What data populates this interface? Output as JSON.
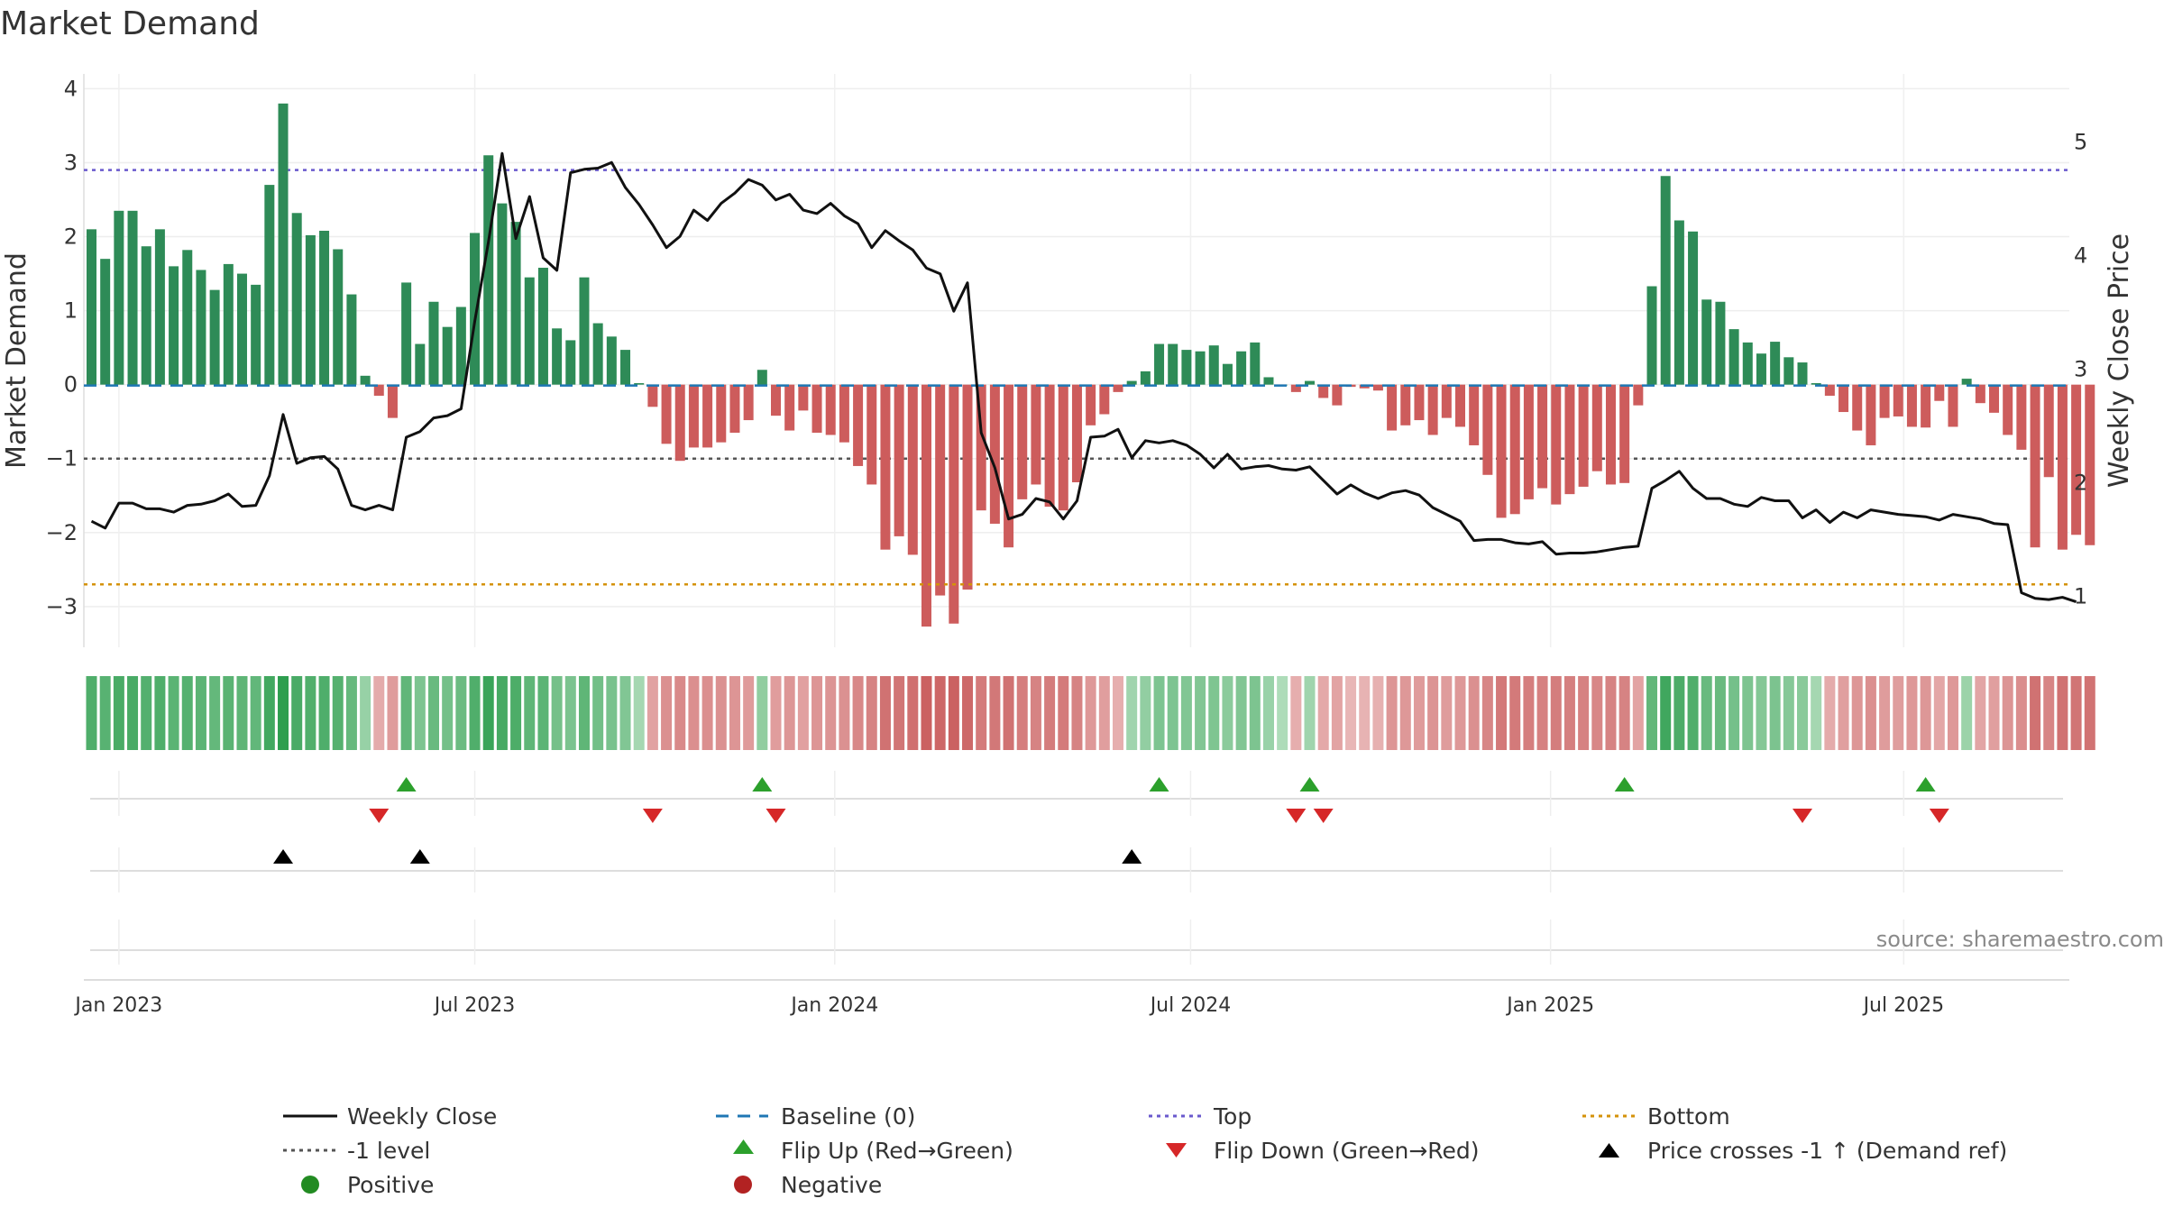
{
  "chart_data": {
    "type": "bar",
    "title": "Market Demand",
    "ylabel": "Market Demand",
    "y2label": "Weekly Close Price",
    "ylim": [
      -3.55,
      4.2
    ],
    "y2lim": [
      0.55,
      5.6
    ],
    "yticks": [
      -3,
      -2,
      -1,
      0,
      1,
      2,
      3,
      4
    ],
    "y2ticks": [
      1,
      2,
      3,
      4,
      5
    ],
    "x_start": "2022-12-19",
    "x_end": "2025-09-22",
    "xticks": [
      {
        "label": "Jan 2023",
        "week": 2
      },
      {
        "label": "Jul 2023",
        "week": 28
      },
      {
        "label": "Jan 2024",
        "week": 54.3
      },
      {
        "label": "Jul 2024",
        "week": 80.3
      },
      {
        "label": "Jan 2025",
        "week": 106.6
      },
      {
        "label": "Jul 2025",
        "week": 132.4
      }
    ],
    "reference_lines": {
      "top": 2.9,
      "minus_one": -1,
      "bottom": -2.7,
      "baseline": 0
    },
    "demand": [
      2.1,
      1.7,
      2.35,
      2.35,
      1.87,
      2.1,
      1.6,
      1.82,
      1.55,
      1.28,
      1.63,
      1.5,
      1.35,
      2.7,
      3.8,
      2.32,
      2.02,
      2.08,
      1.83,
      1.22,
      0.12,
      -0.15,
      -0.45,
      1.38,
      0.55,
      1.12,
      0.78,
      1.05,
      2.05,
      3.1,
      2.45,
      2.2,
      1.45,
      1.58,
      0.76,
      0.6,
      1.45,
      0.83,
      0.65,
      0.47,
      0.02,
      -0.3,
      -0.8,
      -1.03,
      -0.85,
      -0.85,
      -0.78,
      -0.65,
      -0.48,
      0.2,
      -0.42,
      -0.62,
      -0.35,
      -0.65,
      -0.68,
      -0.78,
      -1.1,
      -1.35,
      -2.23,
      -2.05,
      -2.3,
      -3.27,
      -2.85,
      -3.23,
      -2.77,
      -1.7,
      -1.88,
      -2.2,
      -1.55,
      -1.35,
      -1.65,
      -1.7,
      -1.32,
      -0.55,
      -0.4,
      -0.1,
      0.05,
      0.18,
      0.55,
      0.55,
      0.47,
      0.45,
      0.53,
      0.28,
      0.45,
      0.57,
      0.1,
      0.0,
      -0.1,
      0.05,
      -0.18,
      -0.28,
      -0.03,
      -0.05,
      -0.08,
      -0.62,
      -0.55,
      -0.48,
      -0.68,
      -0.45,
      -0.57,
      -0.82,
      -1.22,
      -1.8,
      -1.75,
      -1.55,
      -1.4,
      -1.62,
      -1.48,
      -1.38,
      -1.17,
      -1.35,
      -1.33,
      -0.28,
      1.33,
      2.82,
      2.22,
      2.07,
      1.15,
      1.12,
      0.75,
      0.57,
      0.42,
      0.58,
      0.37,
      0.3,
      0.02,
      -0.15,
      -0.37,
      -0.62,
      -0.82,
      -0.45,
      -0.43,
      -0.57,
      -0.58,
      -0.22,
      -0.57,
      0.08,
      -0.25,
      -0.38,
      -0.68,
      -0.88,
      -2.2,
      -1.25,
      -2.23,
      -2.03,
      -2.17
    ],
    "close": [
      1.66,
      1.6,
      1.82,
      1.82,
      1.77,
      1.77,
      1.74,
      1.8,
      1.81,
      1.84,
      1.9,
      1.79,
      1.8,
      2.06,
      2.6,
      2.17,
      2.22,
      2.23,
      2.12,
      1.8,
      1.76,
      1.8,
      1.76,
      2.4,
      2.45,
      2.57,
      2.59,
      2.65,
      3.42,
      4.12,
      4.9,
      4.15,
      4.52,
      3.98,
      3.87,
      4.73,
      4.76,
      4.77,
      4.82,
      4.6,
      4.45,
      4.27,
      4.07,
      4.17,
      4.4,
      4.31,
      4.46,
      4.55,
      4.67,
      4.62,
      4.49,
      4.54,
      4.4,
      4.37,
      4.46,
      4.35,
      4.28,
      4.07,
      4.22,
      4.13,
      4.05,
      3.89,
      3.84,
      3.51,
      3.76,
      2.44,
      2.13,
      1.68,
      1.72,
      1.86,
      1.83,
      1.68,
      1.84,
      2.4,
      2.41,
      2.47,
      2.22,
      2.37,
      2.35,
      2.37,
      2.33,
      2.25,
      2.13,
      2.25,
      2.12,
      2.14,
      2.15,
      2.12,
      2.11,
      2.14,
      2.02,
      1.9,
      1.98,
      1.91,
      1.86,
      1.91,
      1.93,
      1.89,
      1.78,
      1.72,
      1.66,
      1.49,
      1.5,
      1.5,
      1.47,
      1.46,
      1.48,
      1.37,
      1.38,
      1.38,
      1.39,
      1.41,
      1.43,
      1.44,
      1.95,
      2.02,
      2.1,
      1.95,
      1.86,
      1.86,
      1.81,
      1.79,
      1.87,
      1.84,
      1.84,
      1.69,
      1.76,
      1.65,
      1.74,
      1.69,
      1.76,
      1.74,
      1.72,
      1.71,
      1.7,
      1.67,
      1.72,
      1.7,
      1.68,
      1.64,
      1.63,
      1.03,
      0.98,
      0.97,
      0.99,
      0.95
    ],
    "heat_strip": "shade of each week's demand (green = positive, red = negative)",
    "flip_up_weeks": [
      23,
      49,
      78,
      89,
      112,
      134
    ],
    "flip_down_weeks": [
      21,
      41,
      50,
      88,
      90,
      125,
      135
    ],
    "price_cross_weeks": [
      14,
      24,
      76
    ]
  },
  "legend": {
    "weekly_close": "Weekly Close",
    "baseline": "Baseline (0)",
    "top": "Top",
    "bottom": "Bottom",
    "minus_one": "-1 level",
    "flip_up": "Flip Up (Red→Green)",
    "flip_down": "Flip Down (Green→Red)",
    "price_cross": "Price crosses -1 ↑ (Demand ref)",
    "positive": "Positive",
    "negative": "Negative"
  },
  "source": "source: sharemaestro.com",
  "colors": {
    "positive_bar": "#2e8b57",
    "negative_bar": "#cd5c5c",
    "close_line": "#111111",
    "baseline": "#1f77b4",
    "top_line": "#6a5acd",
    "minus_one_line": "#555555",
    "bottom_line": "#d4920a",
    "flip_up": "#2ca02c",
    "flip_down": "#d62728",
    "price_cross": "#000000",
    "positive_dot": "#228b22",
    "negative_dot": "#b22222"
  }
}
